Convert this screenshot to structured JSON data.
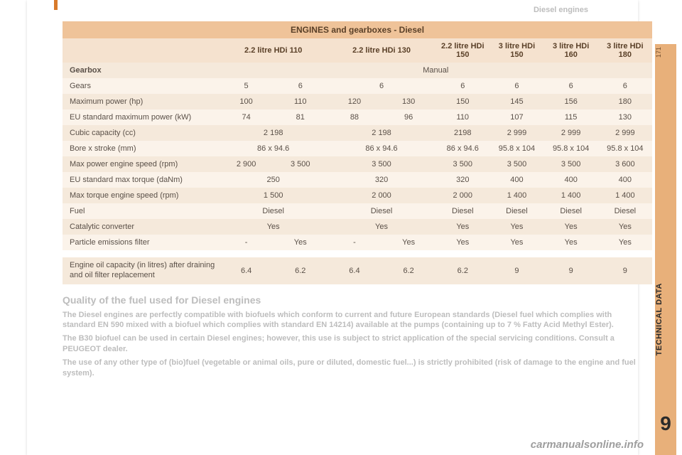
{
  "header": {
    "topic": "Diesel engines",
    "side_pagenum": "171",
    "side_section": "TECHNICAL DATA",
    "side_chapter": "9"
  },
  "table": {
    "title": "ENGINES and gearboxes - Diesel",
    "engine_headers": {
      "e1": "2.2 litre HDi 110",
      "e2": "2.2 litre HDi 130",
      "e3": "2.2 litre HDi 150",
      "e4": "3 litre HDi 150",
      "e5": "3 litre HDi 160",
      "e6": "3 litre HDi 180"
    },
    "gearbox": {
      "label": "Gearbox",
      "value": "Manual"
    },
    "rows": {
      "gears": {
        "label": "Gears",
        "c": [
          "5",
          "6",
          "6",
          "",
          "6",
          "6",
          "6",
          "6"
        ]
      },
      "maxhp": {
        "label": "Maximum power (hp)",
        "c": [
          "100",
          "110",
          "120",
          "130",
          "150",
          "145",
          "156",
          "180"
        ]
      },
      "eukw": {
        "label": "EU standard maximum power (kW)",
        "c": [
          "74",
          "81",
          "88",
          "96",
          "110",
          "107",
          "115",
          "130"
        ]
      },
      "cubic": {
        "label": "Cubic capacity (cc)",
        "c": [
          "2 198",
          "",
          "2 198",
          "",
          "2198",
          "2 999",
          "2 999",
          "2 999"
        ]
      },
      "bore": {
        "label": "Bore x stroke (mm)",
        "c": [
          "86 x 94.6",
          "",
          "86 x 94.6",
          "",
          "86 x 94.6",
          "95.8 x 104",
          "95.8 x 104",
          "95.8 x 104"
        ]
      },
      "maxpwrspd": {
        "label": "Max power engine speed (rpm)",
        "c": [
          "2 900",
          "3 500",
          "3 500",
          "",
          "3 500",
          "3 500",
          "3 500",
          "3 600"
        ]
      },
      "torque": {
        "label": "EU standard max torque (daNm)",
        "c": [
          "250",
          "",
          "320",
          "",
          "320",
          "400",
          "400",
          "400"
        ]
      },
      "torqspd": {
        "label": "Max torque engine speed (rpm)",
        "c": [
          "1 500",
          "",
          "2 000",
          "",
          "2 000",
          "1 400",
          "1 400",
          "1 400"
        ]
      },
      "fuel": {
        "label": "Fuel",
        "c": [
          "Diesel",
          "",
          "Diesel",
          "",
          "Diesel",
          "Diesel",
          "Diesel",
          "Diesel"
        ]
      },
      "cat": {
        "label": "Catalytic converter",
        "c": [
          "Yes",
          "",
          "Yes",
          "",
          "Yes",
          "Yes",
          "Yes",
          "Yes"
        ]
      },
      "pef": {
        "label": "Particle emissions filter",
        "c": [
          "-",
          "Yes",
          "-",
          "Yes",
          "Yes",
          "Yes",
          "Yes",
          "Yes"
        ]
      },
      "oil": {
        "label": "Engine oil capacity (in litres) after draining and oil filter replacement",
        "c": [
          "6.4",
          "6.2",
          "6.4",
          "6.2",
          "6.2",
          "9",
          "9",
          "9"
        ]
      }
    }
  },
  "body": {
    "heading": "Quality of the fuel used for Diesel engines",
    "p1": "The Diesel engines are perfectly compatible with biofuels which conform to current and future European standards (Diesel fuel which complies with standard EN 590 mixed with a biofuel which complies with standard EN 14214) available at the pumps (containing up to 7 % Fatty Acid Methyl Ester).",
    "p2": "The B30 biofuel can be used in certain Diesel engines; however, this use is subject to strict application of the special servicing conditions. Consult a PEUGEOT dealer.",
    "p3": "The use of any other type of (bio)fuel (vegetable or animal oils, pure or diluted, domestic fuel...) is strictly prohibited (risk of damage to the engine and fuel system)."
  },
  "watermark": "carmanualsonline.info"
}
